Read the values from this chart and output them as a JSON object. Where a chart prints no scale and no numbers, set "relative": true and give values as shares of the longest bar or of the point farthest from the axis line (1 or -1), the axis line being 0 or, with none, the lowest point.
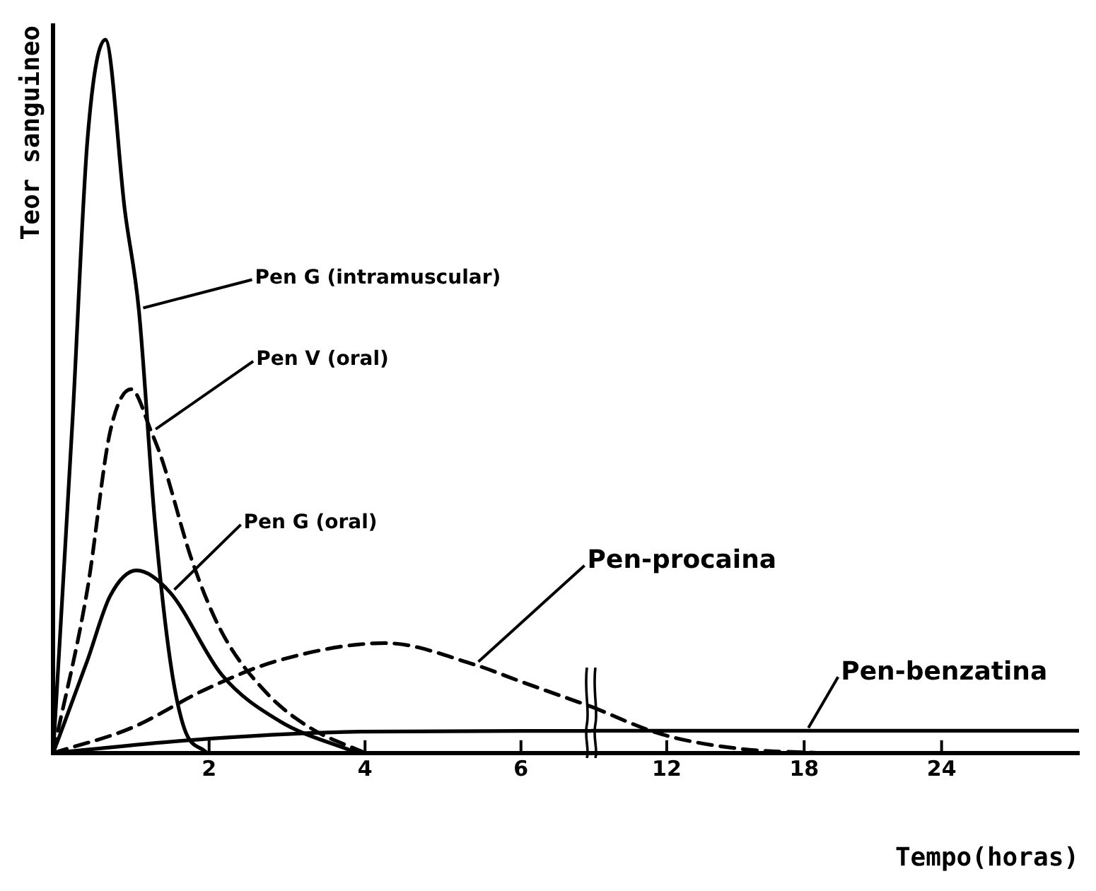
{
  "chart_data": [
    {
      "type": "line",
      "relative": true,
      "ylabel": "Teor sanguineo",
      "xlim": [
        0,
        6.9
      ],
      "xticks": [
        2,
        4,
        6
      ],
      "grid": false,
      "legend": false,
      "marker": "none",
      "series": [
        {
          "name": "Pen G (intramuscular)",
          "color": "#000000",
          "line_style": "solid",
          "x": [
            0,
            0.25,
            0.44,
            0.67,
            0.92,
            1.1,
            1.3,
            1.5,
            1.68,
            1.97
          ],
          "values": [
            0,
            0.47,
            0.86,
            1,
            0.76,
            0.62,
            0.33,
            0.13,
            0.035,
            0
          ]
        },
        {
          "name": "Pen V (oral)",
          "color": "#000000",
          "line_style": "dashed",
          "x": [
            0,
            0.44,
            0.73,
            1.0,
            1.26,
            1.4,
            1.78,
            2.16,
            2.73,
            3.3,
            4
          ],
          "values": [
            0,
            0.23,
            0.45,
            0.51,
            0.45,
            0.41,
            0.27,
            0.17,
            0.085,
            0.035,
            0
          ]
        },
        {
          "name": "Pen G (oral)",
          "color": "#000000",
          "line_style": "solid",
          "x": [
            0,
            0.44,
            0.73,
            1.07,
            1.5,
            2.16,
            2.9,
            3.9
          ],
          "values": [
            0,
            0.13,
            0.22,
            0.256,
            0.225,
            0.11,
            0.045,
            0
          ]
        },
        {
          "name": "Pen-procaina",
          "color": "#000000",
          "line_style": "dashed",
          "x": [
            0,
            1,
            1.97,
            2.9,
            4.26,
            5.4,
            6,
            6.9
          ],
          "values": [
            0,
            0.035,
            0.09,
            0.13,
            0.154,
            0.124,
            0.1,
            0.065
          ]
        },
        {
          "color": "#000000",
          "line_style": "solid",
          "x": [
            0,
            2,
            4,
            6,
            6.9
          ],
          "values": [
            0,
            0.02,
            0.03,
            0.031,
            0.031
          ]
        }
      ]
    },
    {
      "type": "line",
      "relative": true,
      "xlabel": "Tempo(horas)",
      "xlim": [
        8.7,
        30
      ],
      "xticks": [
        12,
        18,
        24
      ],
      "grid": false,
      "legend": false,
      "marker": "none",
      "series": [
        {
          "color": "#000000",
          "line_style": "dashed",
          "x": [
            8.7,
            11.8,
            15.2,
            18.7
          ],
          "values": [
            1,
            0.4,
            0.09,
            0
          ]
        },
        {
          "name": "Pen-benzatina",
          "color": "#000000",
          "line_style": "solid",
          "x": [
            8.7,
            18,
            30
          ],
          "values": [
            0.48,
            0.48,
            0.48
          ]
        }
      ]
    }
  ]
}
